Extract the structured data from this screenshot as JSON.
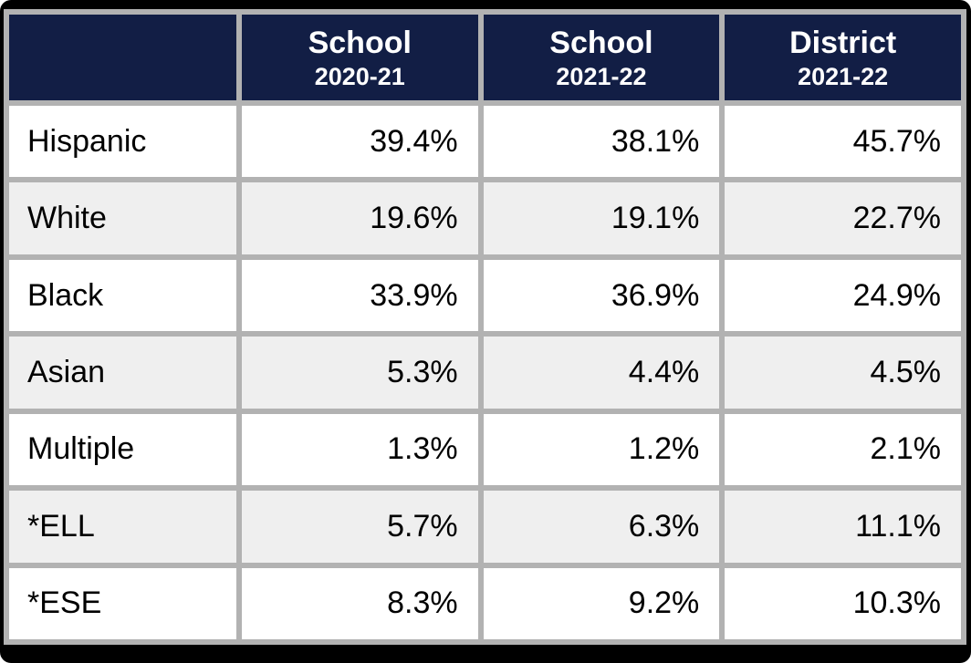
{
  "colors": {
    "frame_bg": "#000000",
    "header_bg": "#121e45",
    "header_text": "#ffffff",
    "grid_border": "#b2b2b2",
    "row_stripe": "#efefef",
    "row_bg": "#ffffff",
    "body_text": "#000000"
  },
  "chart_data": {
    "type": "table",
    "title": "",
    "columns": [
      {
        "title": "",
        "subtitle": ""
      },
      {
        "title": "School",
        "subtitle": "2020-21"
      },
      {
        "title": "School",
        "subtitle": "2021-22"
      },
      {
        "title": "District",
        "subtitle": "2021-22"
      }
    ],
    "rows": [
      {
        "label": "Hispanic",
        "values": [
          "39.4%",
          "38.1%",
          "45.7%"
        ]
      },
      {
        "label": "White",
        "values": [
          "19.6%",
          "19.1%",
          "22.7%"
        ]
      },
      {
        "label": "Black",
        "values": [
          "33.9%",
          "36.9%",
          "24.9%"
        ]
      },
      {
        "label": "Asian",
        "values": [
          "5.3%",
          "4.4%",
          "4.5%"
        ]
      },
      {
        "label": "Multiple",
        "values": [
          "1.3%",
          "1.2%",
          "2.1%"
        ]
      },
      {
        "label": "*ELL",
        "values": [
          "5.7%",
          "6.3%",
          "11.1%"
        ]
      },
      {
        "label": "*ESE",
        "values": [
          "8.3%",
          "9.2%",
          "10.3%"
        ]
      }
    ]
  }
}
